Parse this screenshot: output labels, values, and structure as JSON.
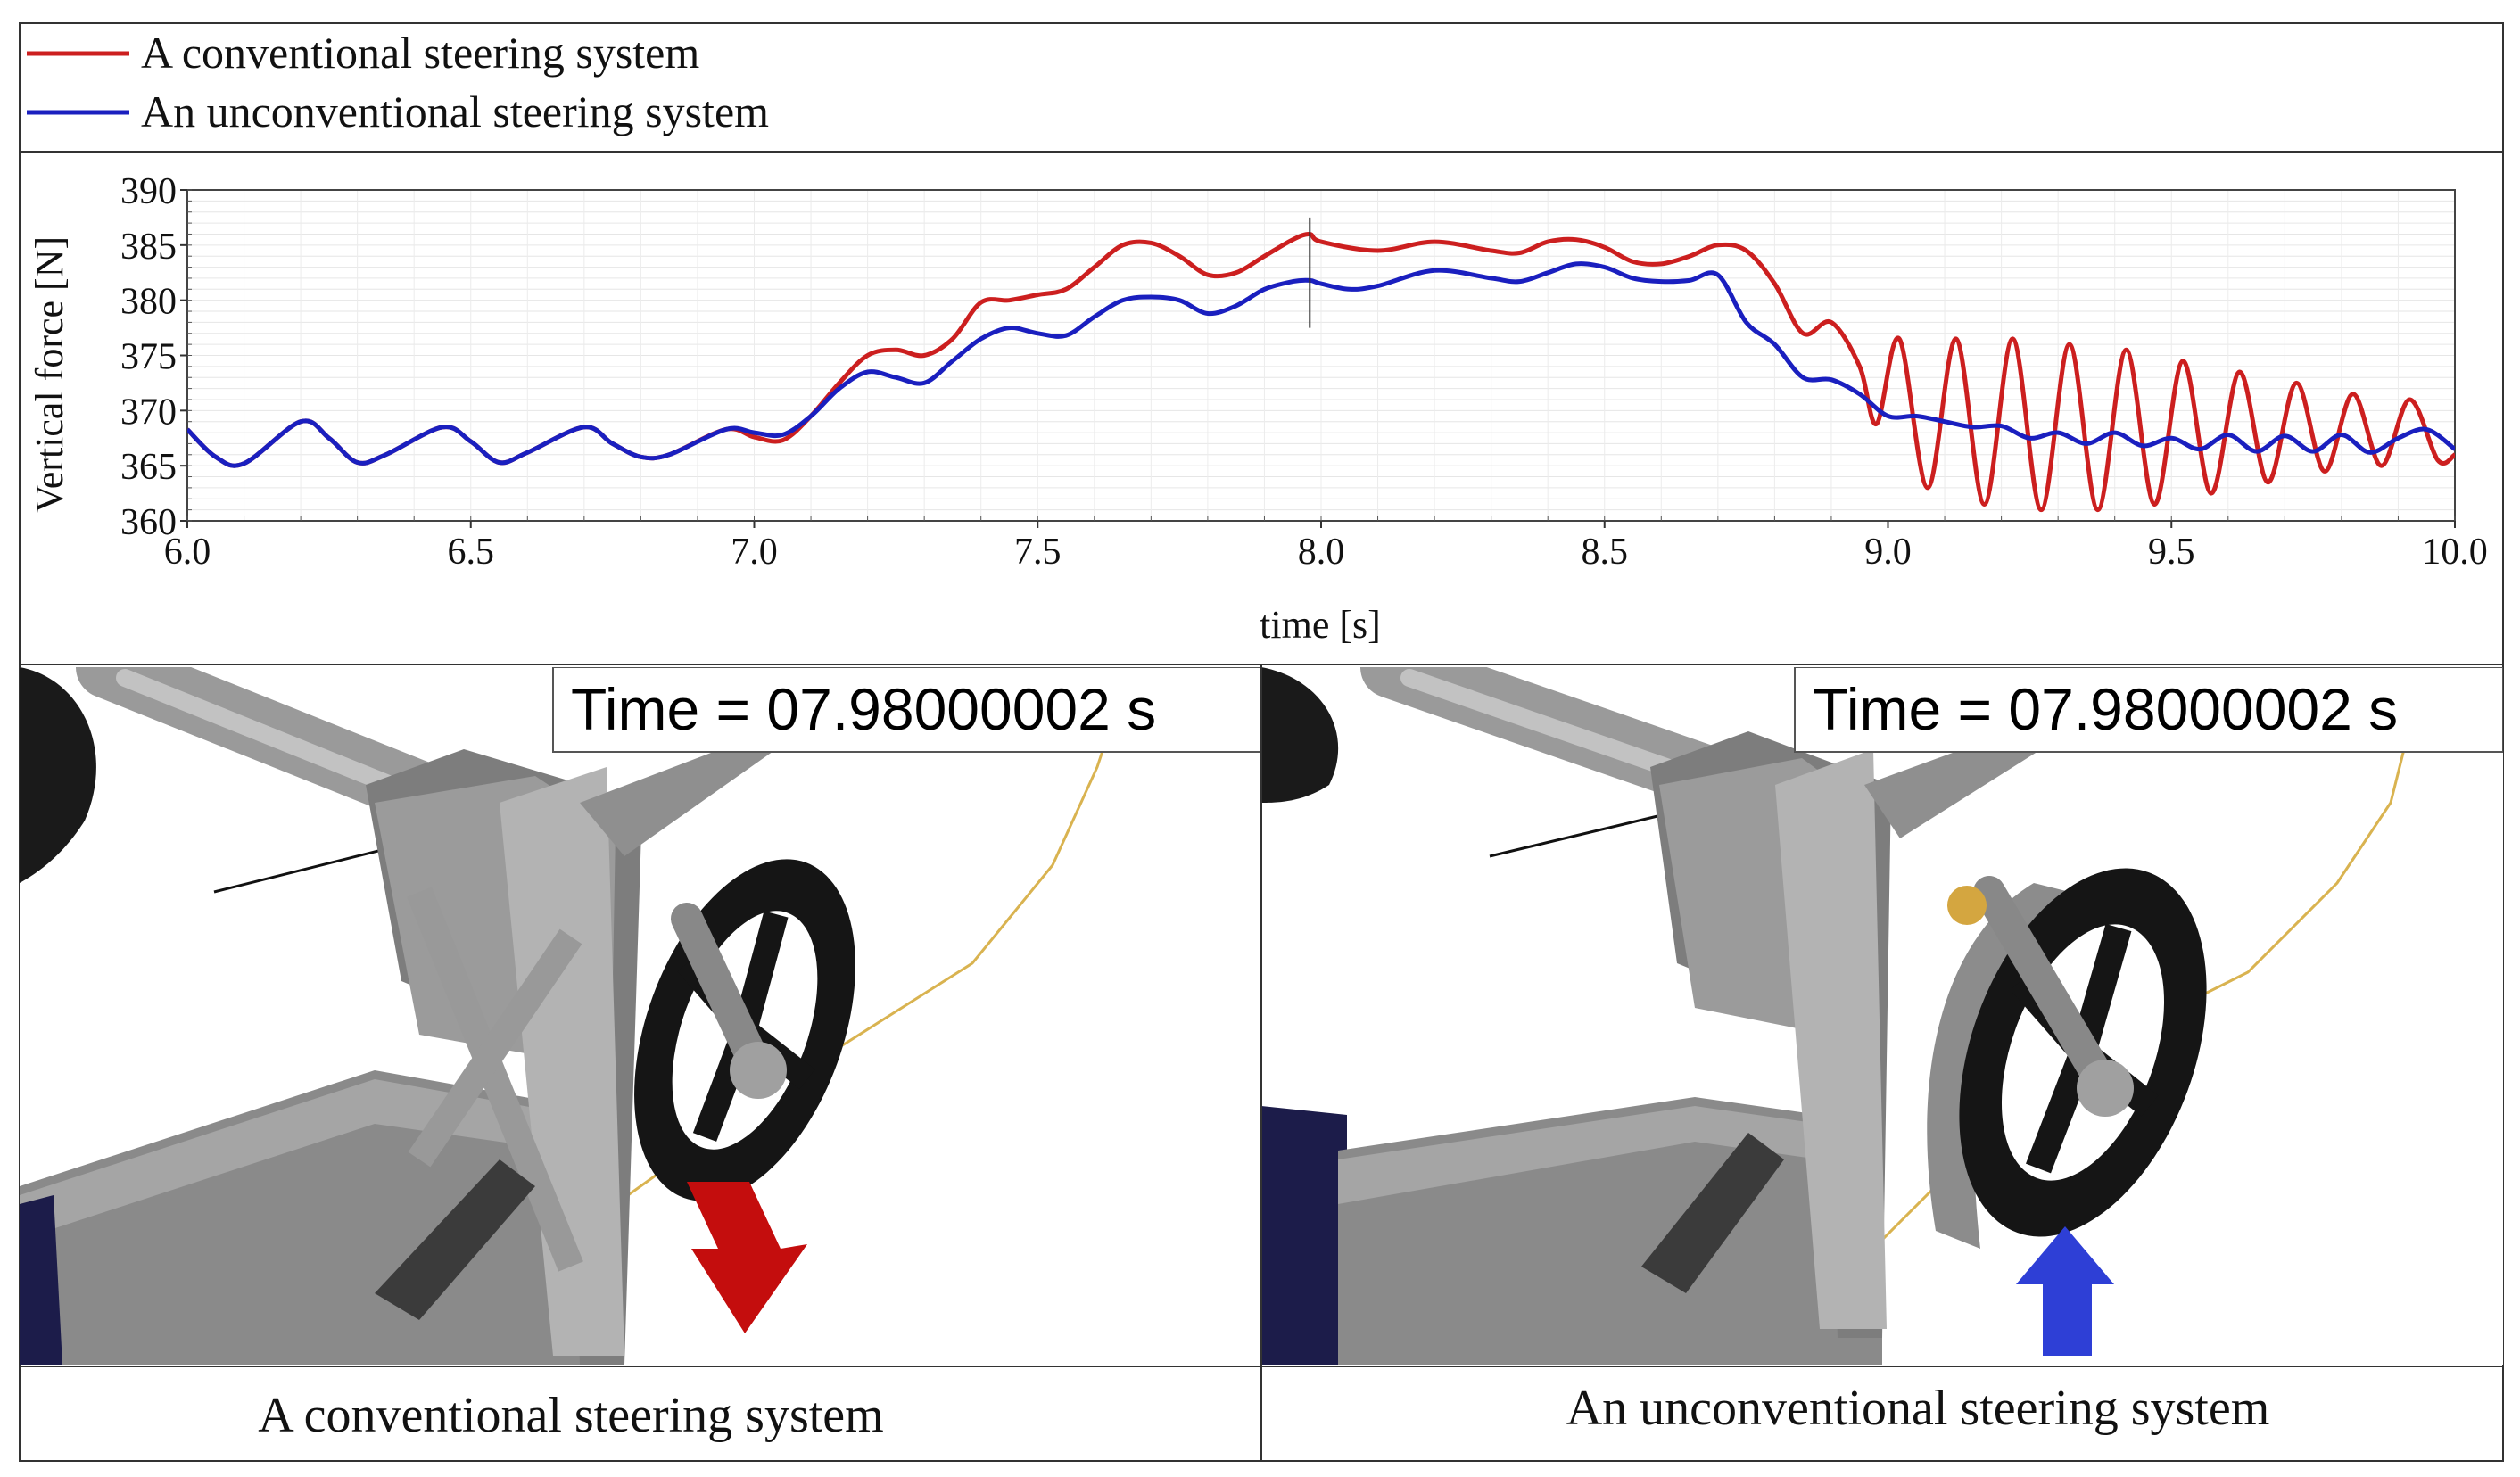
{
  "legend": [
    {
      "label": "A conventional steering system",
      "color": "#cc1f1f"
    },
    {
      "label": "An unconventional steering system",
      "color": "#1a1fbf"
    }
  ],
  "chart_data": {
    "type": "line",
    "ylabel": "Vertical force [N]",
    "xlabel": "time [s]",
    "xlim": [
      6.0,
      10.0
    ],
    "ylim": [
      360,
      390
    ],
    "xticks": [
      "6.0",
      "6.5",
      "7.0",
      "7.5",
      "8.0",
      "8.5",
      "9.0",
      "9.5",
      "10.0"
    ],
    "yticks": [
      "360",
      "365",
      "370",
      "375",
      "380",
      "385",
      "390"
    ],
    "grid": true,
    "legend_position": "top (outside, above plot)",
    "cursor_x": 7.98,
    "series": [
      {
        "name": "A conventional steering system",
        "color": "#cc1f1f",
        "x": [
          6.0,
          6.05,
          6.1,
          6.2,
          6.25,
          6.3,
          6.35,
          6.45,
          6.5,
          6.55,
          6.6,
          6.7,
          6.75,
          6.8,
          6.85,
          6.95,
          7.0,
          7.05,
          7.1,
          7.15,
          7.2,
          7.25,
          7.3,
          7.35,
          7.4,
          7.45,
          7.5,
          7.55,
          7.6,
          7.65,
          7.7,
          7.75,
          7.8,
          7.85,
          7.9,
          7.95,
          7.98,
          8.0,
          8.1,
          8.2,
          8.3,
          8.35,
          8.4,
          8.45,
          8.5,
          8.55,
          8.6,
          8.65,
          8.7,
          8.75,
          8.8,
          8.85,
          8.9,
          8.95,
          8.98,
          9.02,
          9.07,
          9.12,
          9.17,
          9.22,
          9.27,
          9.32,
          9.37,
          9.42,
          9.47,
          9.52,
          9.57,
          9.62,
          9.67,
          9.72,
          9.77,
          9.82,
          9.87,
          9.92,
          9.97,
          10.0
        ],
        "values": [
          368.3,
          365.8,
          365.2,
          369.0,
          367.5,
          365.3,
          366.0,
          368.5,
          367.2,
          365.3,
          366.2,
          368.5,
          367.0,
          365.8,
          366.0,
          368.3,
          367.6,
          367.3,
          369.5,
          372.5,
          375.0,
          375.5,
          375.0,
          376.5,
          379.8,
          380.0,
          380.5,
          381.0,
          383.0,
          385.0,
          385.2,
          384.0,
          382.3,
          382.5,
          384.0,
          385.5,
          386.0,
          385.3,
          384.5,
          385.3,
          384.5,
          384.3,
          385.3,
          385.5,
          384.8,
          383.5,
          383.3,
          384.0,
          385.0,
          384.5,
          381.5,
          377.0,
          378.0,
          374.0,
          368.8,
          376.5,
          363.0,
          376.5,
          361.5,
          376.5,
          361.0,
          376.0,
          361.0,
          375.5,
          361.5,
          374.5,
          362.5,
          373.5,
          363.5,
          372.5,
          364.5,
          371.5,
          365.0,
          371.0,
          365.5,
          366.0
        ]
      },
      {
        "name": "An unconventional steering system",
        "color": "#1a1fbf",
        "x": [
          6.0,
          6.05,
          6.1,
          6.2,
          6.25,
          6.3,
          6.35,
          6.45,
          6.5,
          6.55,
          6.6,
          6.7,
          6.75,
          6.8,
          6.85,
          6.95,
          7.0,
          7.05,
          7.1,
          7.15,
          7.2,
          7.25,
          7.3,
          7.35,
          7.4,
          7.45,
          7.5,
          7.55,
          7.6,
          7.65,
          7.7,
          7.75,
          7.8,
          7.85,
          7.9,
          7.95,
          7.98,
          8.0,
          8.05,
          8.1,
          8.2,
          8.3,
          8.35,
          8.4,
          8.45,
          8.5,
          8.55,
          8.6,
          8.65,
          8.7,
          8.75,
          8.8,
          8.85,
          8.9,
          8.95,
          9.0,
          9.05,
          9.1,
          9.15,
          9.2,
          9.25,
          9.3,
          9.35,
          9.4,
          9.45,
          9.5,
          9.55,
          9.6,
          9.65,
          9.7,
          9.75,
          9.8,
          9.85,
          9.9,
          9.95,
          10.0
        ],
        "values": [
          368.3,
          365.8,
          365.2,
          369.0,
          367.5,
          365.3,
          366.0,
          368.5,
          367.2,
          365.3,
          366.2,
          368.5,
          367.0,
          365.8,
          366.0,
          368.3,
          368.0,
          367.8,
          369.5,
          372.0,
          373.5,
          373.0,
          372.5,
          374.5,
          376.5,
          377.5,
          377.0,
          376.8,
          378.5,
          380.0,
          380.3,
          380.0,
          378.8,
          379.5,
          381.0,
          381.7,
          381.8,
          381.5,
          381.0,
          381.3,
          382.7,
          382.0,
          381.7,
          382.5,
          383.3,
          383.0,
          382.0,
          381.7,
          381.8,
          382.3,
          378.0,
          376.0,
          373.0,
          372.8,
          371.5,
          369.5,
          369.5,
          369.0,
          368.5,
          368.6,
          367.5,
          368.0,
          367.0,
          368.0,
          366.8,
          367.5,
          366.5,
          367.8,
          366.3,
          367.7,
          366.3,
          367.8,
          366.2,
          367.5,
          368.3,
          366.5
        ]
      }
    ]
  },
  "panels": [
    {
      "overlay": "Time = 07.98000002 s",
      "caption": "A conventional steering system",
      "arrow_color": "#c40d0d"
    },
    {
      "overlay": "Time = 07.98000002 s",
      "caption": "An unconventional steering system",
      "arrow_color": "#2e3fd6"
    }
  ]
}
